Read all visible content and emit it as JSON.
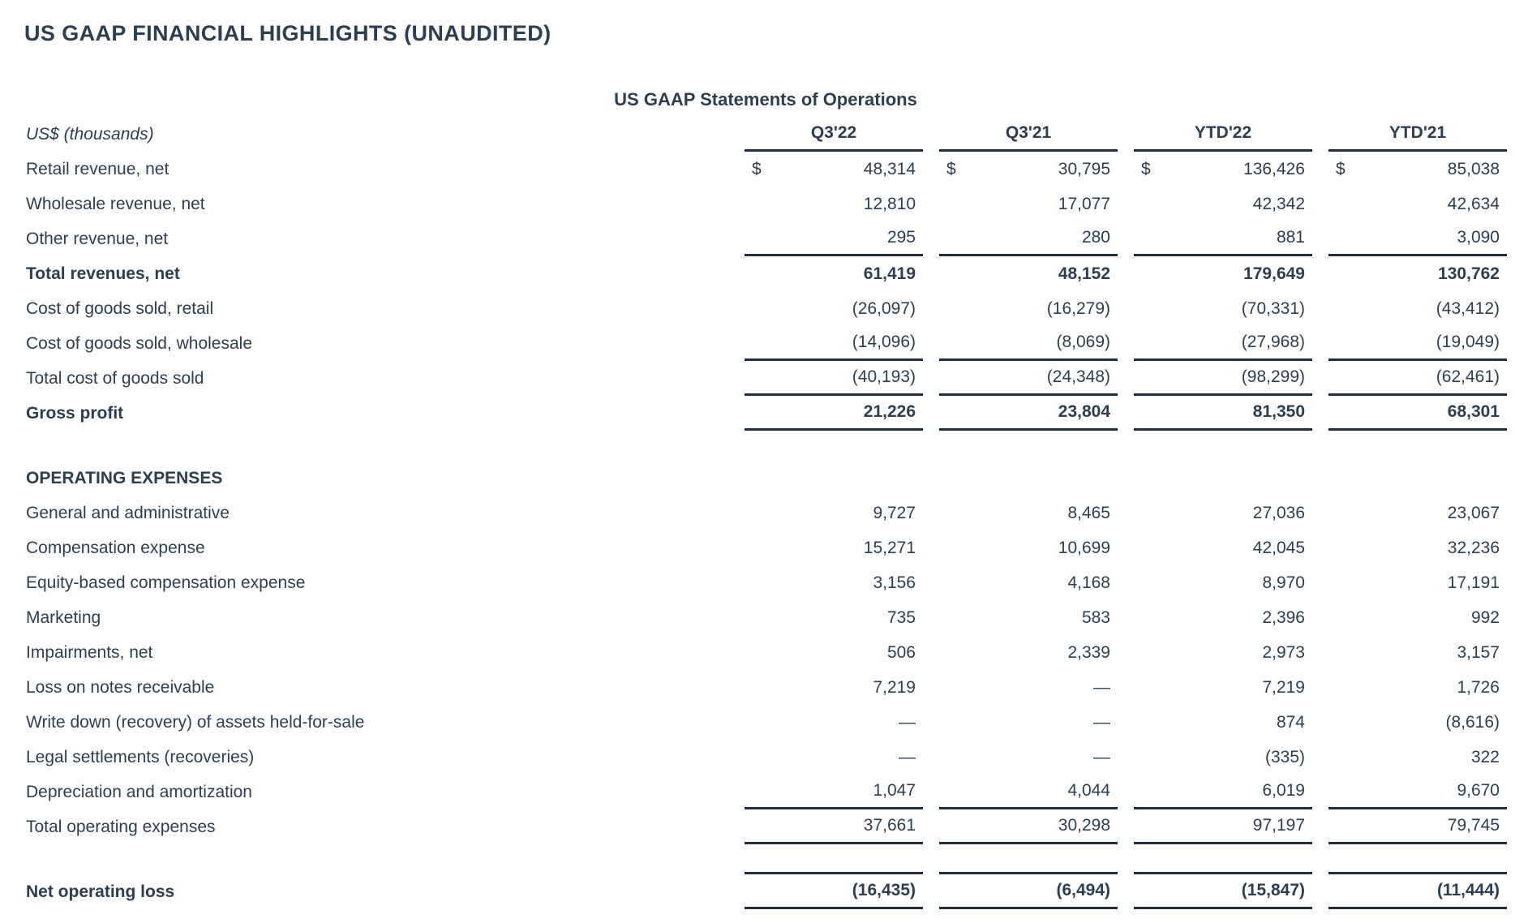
{
  "page_title": "US GAAP FINANCIAL HIGHLIGHTS (UNAUDITED)",
  "colors": {
    "text": "#2c3e50",
    "rule": "#222e3c",
    "background": "#ffffff"
  },
  "table": {
    "title": "US GAAP Statements of Operations",
    "unit_label": "US$ (thousands)",
    "currency_symbol": "$",
    "columns": [
      "Q3'22",
      "Q3'21",
      "YTD'22",
      "YTD'21"
    ],
    "rows": [
      {
        "label": "Retail revenue, net",
        "dollar": true,
        "values": [
          "48,314",
          "30,795",
          "136,426",
          "85,038"
        ]
      },
      {
        "label": "Wholesale revenue, net",
        "values": [
          "12,810",
          "17,077",
          "42,342",
          "42,634"
        ]
      },
      {
        "label": "Other revenue, net",
        "values": [
          "295",
          "280",
          "881",
          "3,090"
        ],
        "rule_below": true
      },
      {
        "label": "Total revenues, net",
        "bold": true,
        "values": [
          "61,419",
          "48,152",
          "179,649",
          "130,762"
        ]
      },
      {
        "label": "Cost of goods sold, retail",
        "values": [
          "(26,097)",
          "(16,279)",
          "(70,331)",
          "(43,412)"
        ]
      },
      {
        "label": "Cost of goods sold, wholesale",
        "values": [
          "(14,096)",
          "(8,069)",
          "(27,968)",
          "(19,049)"
        ],
        "rule_below": true
      },
      {
        "label": "Total cost of goods sold",
        "values": [
          "(40,193)",
          "(24,348)",
          "(98,299)",
          "(62,461)"
        ],
        "rule_below": true
      },
      {
        "label": "Gross profit",
        "bold": true,
        "values": [
          "21,226",
          "23,804",
          "81,350",
          "68,301"
        ],
        "rule_below": true
      },
      {
        "type": "gap"
      },
      {
        "type": "section",
        "label": "OPERATING EXPENSES"
      },
      {
        "label": "General and administrative",
        "values": [
          "9,727",
          "8,465",
          "27,036",
          "23,067"
        ]
      },
      {
        "label": "Compensation expense",
        "values": [
          "15,271",
          "10,699",
          "42,045",
          "32,236"
        ]
      },
      {
        "label": "Equity-based compensation expense",
        "values": [
          "3,156",
          "4,168",
          "8,970",
          "17,191"
        ]
      },
      {
        "label": "Marketing",
        "values": [
          "735",
          "583",
          "2,396",
          "992"
        ]
      },
      {
        "label": "Impairments, net",
        "values": [
          "506",
          "2,339",
          "2,973",
          "3,157"
        ]
      },
      {
        "label": "Loss on notes receivable",
        "values": [
          "7,219",
          "—",
          "7,219",
          "1,726"
        ]
      },
      {
        "label": "Write down (recovery) of assets held-for-sale",
        "values": [
          "—",
          "—",
          "874",
          "(8,616)"
        ]
      },
      {
        "label": "Legal settlements (recoveries)",
        "values": [
          "—",
          "—",
          "(335)",
          "322"
        ]
      },
      {
        "label": "Depreciation and amortization",
        "values": [
          "1,047",
          "4,044",
          "6,019",
          "9,670"
        ],
        "rule_below": true
      },
      {
        "label": "Total operating expenses",
        "values": [
          "37,661",
          "30,298",
          "97,197",
          "79,745"
        ],
        "rule_below": true
      },
      {
        "type": "gap",
        "rule_below": true
      },
      {
        "label": "Net operating loss",
        "bold": true,
        "values": [
          "(16,435)",
          "(6,494)",
          "(15,847)",
          "(11,444)"
        ],
        "rule_below": true
      }
    ]
  }
}
